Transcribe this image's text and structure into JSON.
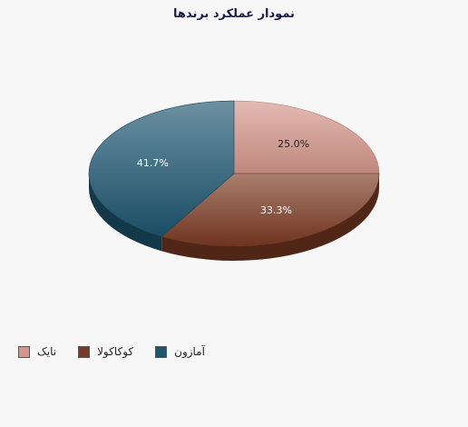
{
  "chart_data": {
    "type": "pie",
    "title": "نمودار عملکرد برندها",
    "slices": [
      {
        "name": "نایک",
        "value": 25.0,
        "label": "25.0%",
        "color": "#d4968a"
      },
      {
        "name": "کوکاکولا",
        "value": 33.3,
        "label": "33.3%",
        "color": "#7b3a22"
      },
      {
        "name": "آمازون",
        "value": 41.7,
        "label": "41.7%",
        "color": "#1d5670"
      }
    ],
    "legend_position": "bottom-left",
    "style": "3d"
  }
}
